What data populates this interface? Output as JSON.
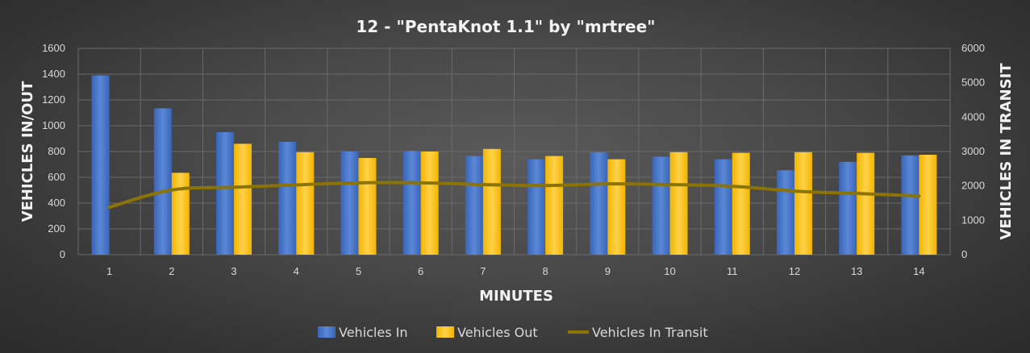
{
  "chart_data": {
    "type": "bar",
    "title": "12 - \"PentaKnot 1.1\" by \"mrtree\"",
    "xlabel": "MINUTES",
    "ylabel": "VEHICLES IN/OUT",
    "y2label": "VEHICLES IN TRANSIT",
    "categories": [
      "1",
      "2",
      "3",
      "4",
      "5",
      "6",
      "7",
      "8",
      "9",
      "10",
      "11",
      "12",
      "13",
      "14"
    ],
    "ylim": [
      0,
      1600
    ],
    "y_ticks": [
      "0",
      "200",
      "400",
      "600",
      "800",
      "1000",
      "1200",
      "1400",
      "1600"
    ],
    "y2lim": [
      0,
      6000
    ],
    "y2_ticks": [
      "0",
      "1000",
      "2000",
      "3000",
      "4000",
      "5000",
      "6000"
    ],
    "grid": true,
    "legend_position": "bottom",
    "series": [
      {
        "name": "Vehicles In",
        "type": "bar",
        "axis": "left",
        "color": "#4472C4",
        "values": [
          1390,
          1135,
          950,
          875,
          800,
          805,
          765,
          740,
          795,
          760,
          740,
          655,
          720,
          770
        ]
      },
      {
        "name": "Vehicles Out",
        "type": "bar",
        "axis": "left",
        "color": "#FFC000",
        "values": [
          0,
          635,
          860,
          795,
          750,
          800,
          820,
          765,
          740,
          795,
          790,
          795,
          790,
          775
        ]
      },
      {
        "name": "Vehicles In Transit",
        "type": "line",
        "axis": "right",
        "color": "#8C7305",
        "values": [
          1380,
          1880,
          1960,
          2030,
          2090,
          2090,
          2040,
          2010,
          2060,
          2040,
          1990,
          1850,
          1780,
          1710
        ]
      }
    ]
  }
}
